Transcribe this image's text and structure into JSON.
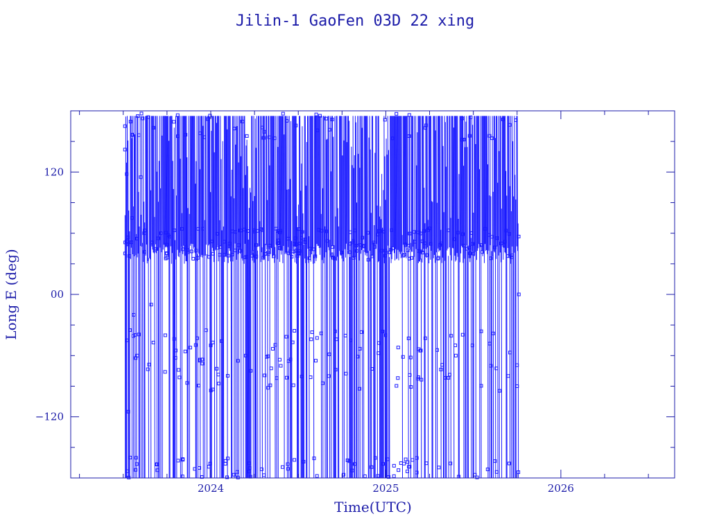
{
  "chart_data": {
    "type": "scatter",
    "title": "Jilin-1 GaoFen 03D 22 xing",
    "xlabel": "Time(UTC)",
    "ylabel": "Long E (deg)",
    "xlim": [
      2023.2,
      2026.65
    ],
    "ylim": [
      -180,
      180
    ],
    "x_ticks": [
      {
        "value": 2024,
        "label": "2024"
      },
      {
        "value": 2025,
        "label": "2025"
      },
      {
        "value": 2026,
        "label": "2026"
      }
    ],
    "y_ticks": [
      {
        "value": 120,
        "label": "120"
      },
      {
        "value": 0,
        "label": "00"
      },
      {
        "value": -120,
        "label": "−120"
      }
    ],
    "series": [
      {
        "color": "#1a1aff",
        "marker": "square",
        "x_start": 2023.51,
        "x_end": 2025.76,
        "description_points": [
          {
            "x": 2023.51,
            "y": 165
          },
          {
            "x": 2023.51,
            "y": 142
          },
          {
            "x": 2023.52,
            "y": 118
          },
          {
            "x": 2023.52,
            "y": -45
          },
          {
            "x": 2023.53,
            "y": -115
          },
          {
            "x": 2023.54,
            "y": -160
          },
          {
            "x": 2023.55,
            "y": 75
          },
          {
            "x": 2023.56,
            "y": -20
          },
          {
            "x": 2023.58,
            "y": -60
          },
          {
            "x": 2023.6,
            "y": 115
          },
          {
            "x": 2023.62,
            "y": 60
          },
          {
            "x": 2023.66,
            "y": -10
          },
          {
            "x": 2023.7,
            "y": 55
          },
          {
            "x": 2023.75,
            "y": 40
          },
          {
            "x": 2023.8,
            "y": -55
          },
          {
            "x": 2023.9,
            "y": 35
          },
          {
            "x": 2024.0,
            "y": -50
          },
          {
            "x": 2024.1,
            "y": 38
          },
          {
            "x": 2024.2,
            "y": -60
          },
          {
            "x": 2024.3,
            "y": 36
          },
          {
            "x": 2024.4,
            "y": -70
          },
          {
            "x": 2024.5,
            "y": 40
          },
          {
            "x": 2024.6,
            "y": -65
          },
          {
            "x": 2024.7,
            "y": 36
          },
          {
            "x": 2024.8,
            "y": -45
          },
          {
            "x": 2024.9,
            "y": 34
          },
          {
            "x": 2025.0,
            "y": -40
          },
          {
            "x": 2025.1,
            "y": 38
          },
          {
            "x": 2025.2,
            "y": -55
          },
          {
            "x": 2025.3,
            "y": 36
          },
          {
            "x": 2025.4,
            "y": -60
          },
          {
            "x": 2025.5,
            "y": 40
          },
          {
            "x": 2025.6,
            "y": -70
          },
          {
            "x": 2025.7,
            "y": -80
          },
          {
            "x": 2025.75,
            "y": -90
          },
          {
            "x": 2025.76,
            "y": 0
          }
        ]
      }
    ],
    "grid": false,
    "legend": "none"
  }
}
